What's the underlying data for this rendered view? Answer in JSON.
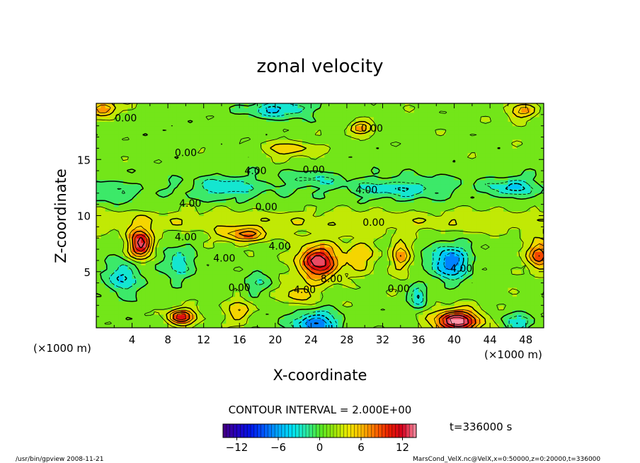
{
  "chart_data": {
    "type": "heatmap",
    "title": "zonal velocity",
    "xlabel": "X-coordinate",
    "ylabel": "Z-coordinate",
    "x_unit": "(×1000 m)",
    "z_unit": "(×1000 m)",
    "xlim": [
      0,
      50
    ],
    "zlim": [
      0,
      20
    ],
    "x_ticks": [
      4,
      8,
      12,
      16,
      20,
      24,
      28,
      32,
      36,
      40,
      44,
      48
    ],
    "z_ticks": [
      5,
      10,
      15
    ],
    "contour_interval_label": "CONTOUR INTERVAL = 2.000E+00",
    "contour_interval": 2.0,
    "time_label": "t=336000 s",
    "colorbar": {
      "min": -14,
      "max": 14,
      "ticks": [
        -12,
        -6,
        0,
        6,
        12
      ]
    },
    "contour_labels": [
      {
        "text": "0.00",
        "x": 3.3,
        "z": 18.7
      },
      {
        "text": "0.00",
        "x": 30.8,
        "z": 17.8
      },
      {
        "text": "0.00",
        "x": 10.0,
        "z": 15.6
      },
      {
        "text": "4.00",
        "x": 17.8,
        "z": 14.0
      },
      {
        "text": "0.00",
        "x": 24.3,
        "z": 14.1
      },
      {
        "text": "4.00",
        "x": 30.2,
        "z": 12.3
      },
      {
        "text": "4.00",
        "x": 10.5,
        "z": 11.1
      },
      {
        "text": "0.00",
        "x": 19.0,
        "z": 10.8
      },
      {
        "text": "0.00",
        "x": 31.0,
        "z": 9.4
      },
      {
        "text": "4.00",
        "x": 10.0,
        "z": 8.1
      },
      {
        "text": "4.00",
        "x": 20.5,
        "z": 7.3
      },
      {
        "text": "4.00",
        "x": 14.3,
        "z": 6.2
      },
      {
        "text": "8.00",
        "x": 26.3,
        "z": 4.4
      },
      {
        "text": "4.00",
        "x": 40.8,
        "z": 5.3
      },
      {
        "text": "0.00",
        "x": 16.0,
        "z": 3.6
      },
      {
        "text": "4.00",
        "x": 23.3,
        "z": 3.4
      },
      {
        "text": "0.00",
        "x": 33.8,
        "z": 3.5
      }
    ],
    "features": [
      {
        "x": 5.0,
        "z": 7.5,
        "u": 12,
        "sx": 1.3,
        "sz": 1.3
      },
      {
        "x": 24.8,
        "z": 5.9,
        "u": 12,
        "sx": 2.2,
        "sz": 1.5
      },
      {
        "x": 40.3,
        "z": 0.6,
        "u": 14,
        "sx": 2.5,
        "sz": 1.0
      },
      {
        "x": 9.5,
        "z": 1.0,
        "u": 10,
        "sx": 1.5,
        "sz": 0.7
      },
      {
        "x": 49.5,
        "z": 6.5,
        "u": 9,
        "sx": 1.2,
        "sz": 1.3
      },
      {
        "x": 16.5,
        "z": 8.3,
        "u": 7,
        "sx": 2.5,
        "sz": 0.6
      },
      {
        "x": 21.5,
        "z": 15.9,
        "u": 4,
        "sx": 3.0,
        "sz": 0.7
      },
      {
        "x": 29.5,
        "z": 17.8,
        "u": 7,
        "sx": 1.3,
        "sz": 0.5
      },
      {
        "x": 1.0,
        "z": 19.5,
        "u": 7,
        "sx": 1.5,
        "sz": 0.6
      },
      {
        "x": 47.5,
        "z": 19.3,
        "u": 6,
        "sx": 1.5,
        "sz": 0.6
      },
      {
        "x": 29.5,
        "z": 6.5,
        "u": 4,
        "sx": 1.8,
        "sz": 1.5
      },
      {
        "x": 34.0,
        "z": 6.5,
        "u": 6,
        "sx": 1.0,
        "sz": 1.4
      },
      {
        "x": 16.0,
        "z": 1.5,
        "u": 5,
        "sx": 1.3,
        "sz": 1.0
      },
      {
        "x": 22.5,
        "z": 3.0,
        "u": 4,
        "sx": 2.0,
        "sz": 0.9
      },
      {
        "x": 39.5,
        "z": 5.9,
        "u": -9,
        "sx": 2.0,
        "sz": 1.5
      },
      {
        "x": 24.5,
        "z": 0.4,
        "u": -9,
        "sx": 2.5,
        "sz": 1.0
      },
      {
        "x": 3.0,
        "z": 4.5,
        "u": -6,
        "sx": 1.6,
        "sz": 1.5
      },
      {
        "x": 9.0,
        "z": 5.8,
        "u": -4,
        "sx": 2.0,
        "sz": 1.5
      },
      {
        "x": 36.0,
        "z": 2.8,
        "u": -6,
        "sx": 0.9,
        "sz": 0.8
      },
      {
        "x": 47.0,
        "z": 0.5,
        "u": -5,
        "sx": 1.5,
        "sz": 0.8
      },
      {
        "x": 20.5,
        "z": 19.5,
        "u": -6,
        "sx": 3.5,
        "sz": 0.7
      },
      {
        "x": 14.5,
        "z": 12.5,
        "u": -4,
        "sx": 3.5,
        "sz": 0.9
      },
      {
        "x": 34.0,
        "z": 12.4,
        "u": -4,
        "sx": 5.0,
        "sz": 0.9
      },
      {
        "x": 46.5,
        "z": 12.5,
        "u": -5,
        "sx": 2.5,
        "sz": 0.8
      },
      {
        "x": 24.0,
        "z": 13.3,
        "u": -3,
        "sx": 3.0,
        "sz": 0.7
      },
      {
        "x": 2.0,
        "z": 12.0,
        "u": -3,
        "sx": 2.0,
        "sz": 0.8
      },
      {
        "x": 18.0,
        "z": 4.0,
        "u": -3,
        "sx": 1.5,
        "sz": 1.0
      }
    ]
  },
  "footer": {
    "left": "/usr/bin/gpview  2008-11-21",
    "right": "MarsCond_VelX.nc@VelX,x=0:50000,z=0:20000,t=336000"
  }
}
